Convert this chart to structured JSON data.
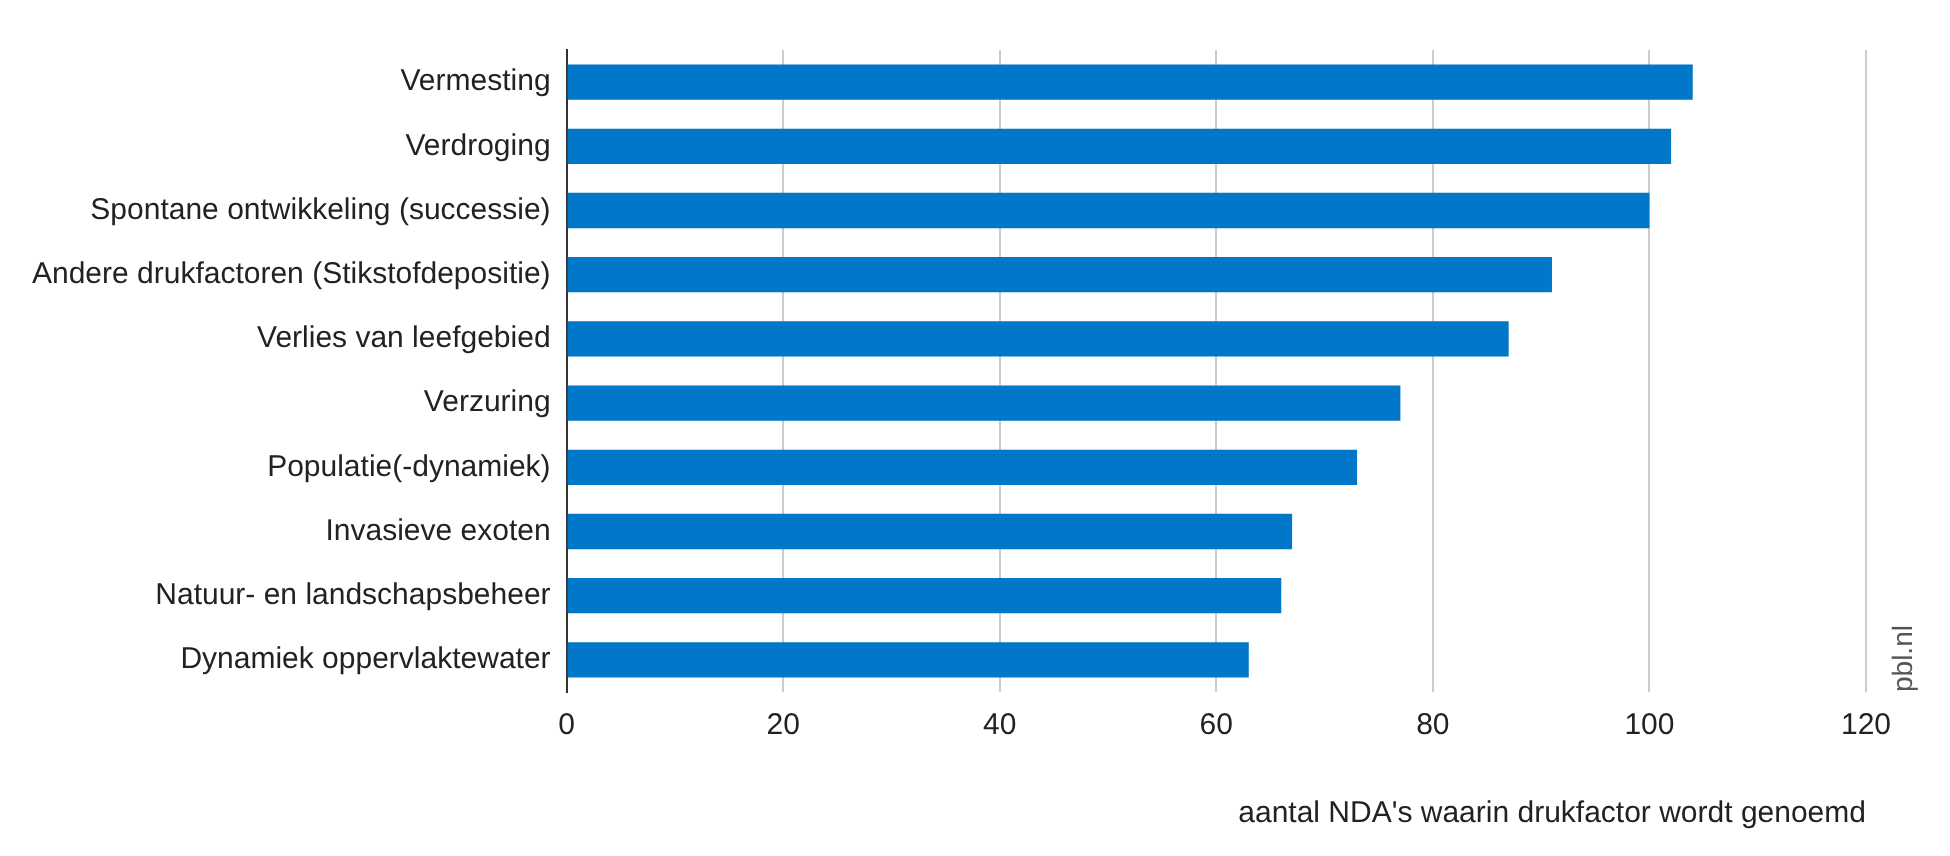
{
  "chart_data": {
    "type": "bar",
    "orientation": "horizontal",
    "categories": [
      "Vermesting",
      "Verdroging",
      "Spontane ontwikkeling (successie)",
      "Andere drukfactoren (Stikstofdepositie)",
      "Verlies van leefgebied",
      "Verzuring",
      "Populatie(-dynamiek)",
      "Invasieve exoten",
      "Natuur- en landschapsbeheer",
      "Dynamiek oppervlaktewater"
    ],
    "values": [
      104,
      102,
      100,
      91,
      87,
      77,
      73,
      67,
      66,
      63
    ],
    "color": "#0077c8",
    "xlim": [
      0,
      120
    ],
    "xticks": [
      0,
      20,
      40,
      60,
      80,
      100,
      120
    ],
    "xlabel": "aantal NDA's waarin drukfactor wordt genoemd",
    "grid": "x",
    "legend": false,
    "annotations": [
      "pbl.nl"
    ]
  }
}
